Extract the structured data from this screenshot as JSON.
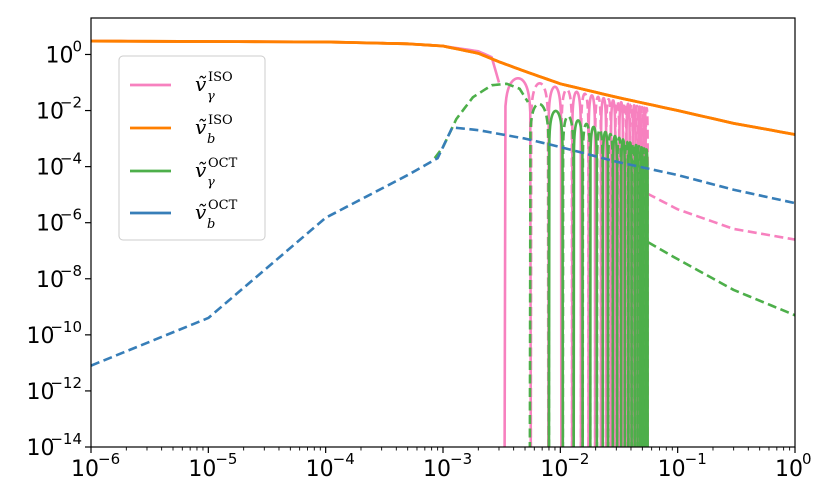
{
  "chart_data": {
    "type": "line",
    "title": "",
    "xlabel": "",
    "ylabel": "",
    "x_scale": "log",
    "y_scale": "log",
    "xlim": [
      1e-06,
      1
    ],
    "ylim": [
      1e-14,
      20
    ],
    "grid": false,
    "legend_position": "upper-left",
    "x_ticks": [
      {
        "value": 1e-06,
        "base": "10",
        "exp": "−6"
      },
      {
        "value": 1e-05,
        "base": "10",
        "exp": "−5"
      },
      {
        "value": 0.0001,
        "base": "10",
        "exp": "−4"
      },
      {
        "value": 0.001,
        "base": "10",
        "exp": "−3"
      },
      {
        "value": 0.01,
        "base": "10",
        "exp": "−2"
      },
      {
        "value": 0.1,
        "base": "10",
        "exp": "−1"
      },
      {
        "value": 1,
        "base": "10",
        "exp": "0"
      }
    ],
    "y_ticks": [
      {
        "value": 1,
        "base": "10",
        "exp": "0"
      },
      {
        "value": 0.01,
        "base": "10",
        "exp": "−2"
      },
      {
        "value": 0.0001,
        "base": "10",
        "exp": "−4"
      },
      {
        "value": 1e-06,
        "base": "10",
        "exp": "−6"
      },
      {
        "value": 1e-08,
        "base": "10",
        "exp": "−8"
      },
      {
        "value": 1e-10,
        "base": "10",
        "exp": "−10"
      },
      {
        "value": 1e-12,
        "base": "10",
        "exp": "−12"
      },
      {
        "value": 1e-14,
        "base": "10",
        "exp": "−14"
      }
    ],
    "series": [
      {
        "key": "vgamma_iso",
        "legend": {
          "base": "ṽ",
          "sup": "ISO",
          "sub": "γ"
        },
        "color": "#f781bf",
        "style": "oscillating",
        "solid": [
          [
            1e-06,
            3.0
          ],
          [
            0.0001,
            2.8
          ],
          [
            0.0005,
            2.4
          ],
          [
            0.001,
            2.0
          ],
          [
            0.002,
            1.3
          ],
          [
            0.0026,
            0.8
          ],
          [
            0.003,
            0.1
          ]
        ],
        "envelope": {
          "x_start": 0.0031,
          "x_end": 0.055,
          "y_start": 0.2,
          "y_end": 0.012
        },
        "oscillation": {
          "crossings": [
            0.00335,
            0.0056,
            0.0079,
            0.0102,
            0.0126,
            0.015,
            0.0174,
            0.0198,
            0.0222,
            0.0246,
            0.027,
            0.0294,
            0.0318,
            0.0342,
            0.0366,
            0.039,
            0.0414,
            0.0438,
            0.0462,
            0.0486,
            0.051,
            0.0534,
            0.0555
          ],
          "first_sign": "+"
        },
        "tail_dashed": [
          [
            0.055,
            1.1e-05
          ],
          [
            0.1,
            3e-06
          ],
          [
            0.3,
            6e-07
          ],
          [
            1.0,
            2.5e-07
          ]
        ]
      },
      {
        "key": "vb_iso",
        "legend": {
          "base": "ṽ",
          "sup": "ISO",
          "sub": "b"
        },
        "color": "#ff7f00",
        "style": "solid",
        "points": [
          [
            1e-06,
            3.0
          ],
          [
            0.0001,
            2.8
          ],
          [
            0.0005,
            2.4
          ],
          [
            0.001,
            2.0
          ],
          [
            0.002,
            1.1
          ],
          [
            0.003,
            0.55
          ],
          [
            0.005,
            0.25
          ],
          [
            0.01,
            0.09
          ],
          [
            0.03,
            0.03
          ],
          [
            0.1,
            0.01
          ],
          [
            0.3,
            0.0035
          ],
          [
            1.0,
            0.0014
          ]
        ]
      },
      {
        "key": "vgamma_oct",
        "legend": {
          "base": "ṽ",
          "sup": "OCT",
          "sub": "γ"
        },
        "color": "#4daf4a",
        "style": "oscillating",
        "rise_dashed": [
          [
            0.00085,
            0.0002
          ],
          [
            0.001,
            0.0005
          ],
          [
            0.0013,
            0.005
          ],
          [
            0.0018,
            0.03
          ],
          [
            0.0026,
            0.08
          ],
          [
            0.0035,
            0.09
          ],
          [
            0.0045,
            0.06
          ],
          [
            0.0053,
            0.02
          ]
        ],
        "envelope": {
          "x_start": 0.0054,
          "x_end": 0.055,
          "y_start": 0.025,
          "y_end": 0.0004
        },
        "oscillation": {
          "crossings": [
            0.0055,
            0.008,
            0.0105,
            0.013,
            0.0155,
            0.018,
            0.0205,
            0.023,
            0.0255,
            0.028,
            0.0305,
            0.033,
            0.0355,
            0.038,
            0.0405,
            0.043,
            0.0455,
            0.048,
            0.0505,
            0.053,
            0.0555
          ],
          "first_sign": "-"
        },
        "tail_dashed": [
          [
            0.056,
            2e-07
          ],
          [
            0.1,
            5e-08
          ],
          [
            0.3,
            4e-09
          ],
          [
            1.0,
            5e-10
          ]
        ]
      },
      {
        "key": "vb_oct",
        "legend": {
          "base": "ṽ",
          "sup": "OCT",
          "sub": "b"
        },
        "color": "#377eb8",
        "style": "dashed",
        "points": [
          [
            1e-06,
            8e-12
          ],
          [
            1e-05,
            4e-10
          ],
          [
            0.0001,
            1.5e-06
          ],
          [
            0.0005,
            5e-05
          ],
          [
            0.0009,
            0.0002
          ],
          [
            0.0012,
            0.0025
          ],
          [
            0.002,
            0.002
          ],
          [
            0.005,
            0.001
          ],
          [
            0.01,
            0.0005
          ],
          [
            0.03,
            0.00015
          ],
          [
            0.1,
            5e-05
          ],
          [
            0.3,
            1.5e-05
          ],
          [
            1.0,
            5e-06
          ]
        ]
      }
    ]
  }
}
